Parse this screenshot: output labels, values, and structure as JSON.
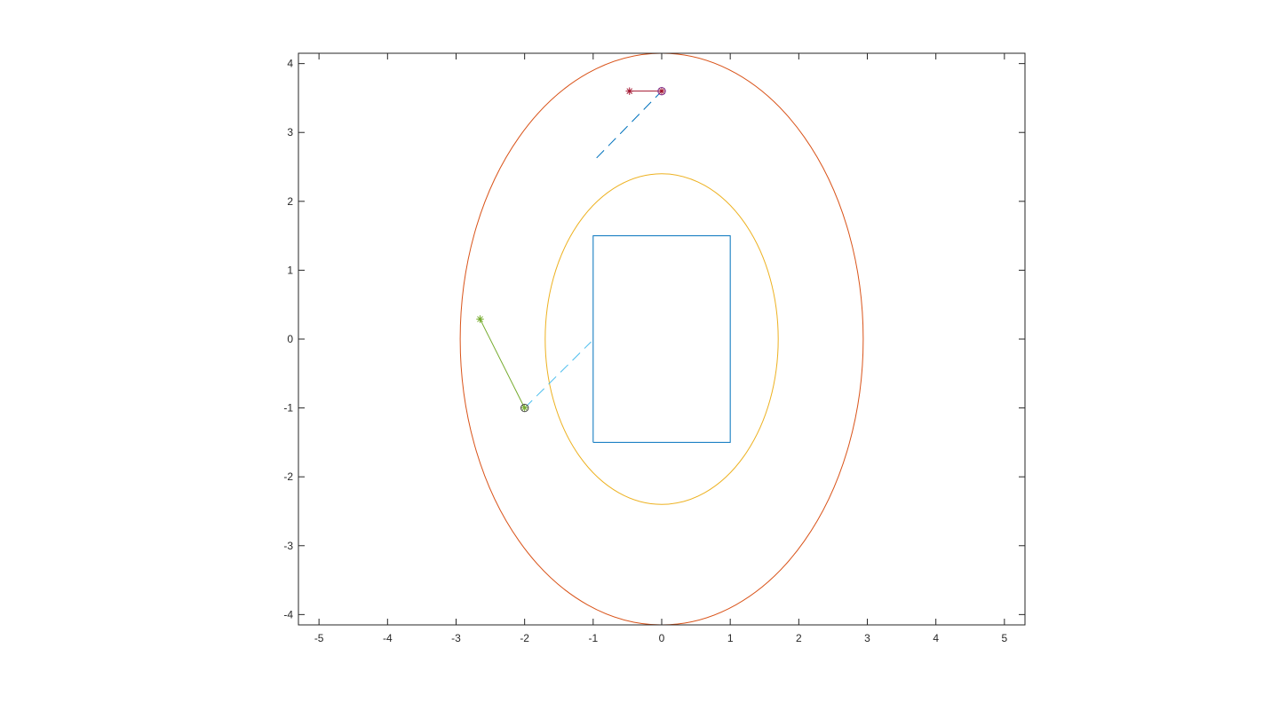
{
  "chart_data": {
    "type": "line",
    "title": "",
    "xlabel": "",
    "ylabel": "",
    "xlim": [
      -5.3,
      5.3
    ],
    "ylim": [
      -4.15,
      4.15
    ],
    "grid": false,
    "x_ticks": [
      -5,
      -4,
      -3,
      -2,
      -1,
      0,
      1,
      2,
      3,
      4,
      5
    ],
    "y_ticks": [
      -4,
      -3,
      -2,
      -1,
      0,
      1,
      2,
      3,
      4
    ],
    "x_tick_labels": [
      "-5",
      "-4",
      "-3",
      "-2",
      "-1",
      "0",
      "1",
      "2",
      "3",
      "4",
      "5"
    ],
    "y_tick_labels": [
      "-4",
      "-3",
      "-2",
      "-1",
      "0",
      "1",
      "2",
      "3",
      "4"
    ],
    "series": [
      {
        "shape": "rectangle",
        "color": "#0072BD",
        "x": [
          -1,
          1,
          1,
          -1,
          -1
        ],
        "y": [
          -1.5,
          -1.5,
          1.5,
          1.5,
          -1.5
        ]
      },
      {
        "shape": "ellipse",
        "color": "#D95319",
        "center": [
          0,
          0
        ],
        "radii": [
          2.94,
          4.15
        ]
      },
      {
        "shape": "ellipse",
        "color": "#EDB120",
        "center": [
          0,
          0
        ],
        "radii": [
          1.7,
          2.4
        ]
      },
      {
        "shape": "segment",
        "color": "#A2142F",
        "style": "solid",
        "x": [
          -0.47,
          0
        ],
        "y": [
          3.6,
          3.6
        ]
      },
      {
        "shape": "segment",
        "color": "#0072BD",
        "style": "dashed",
        "x": [
          -0.95,
          0
        ],
        "y": [
          2.63,
          3.6
        ]
      },
      {
        "shape": "segment",
        "color": "#77AC30",
        "style": "solid",
        "x": [
          -2.65,
          -2
        ],
        "y": [
          0.29,
          -1
        ]
      },
      {
        "shape": "segment",
        "color": "#4DBEEE",
        "style": "dashed",
        "x": [
          -2,
          -1.03
        ],
        "y": [
          -1,
          -0.04
        ]
      }
    ],
    "markers": [
      {
        "x": -0.47,
        "y": 3.6,
        "marker": "asterisk",
        "color": "#A2142F"
      },
      {
        "x": 0,
        "y": 3.6,
        "marker": "asterisk",
        "color": "#A2142F"
      },
      {
        "x": 0,
        "y": 3.6,
        "marker": "circle",
        "color": "#7E2F8E"
      },
      {
        "x": -2.65,
        "y": 0.29,
        "marker": "asterisk",
        "color": "#77AC30"
      },
      {
        "x": -2,
        "y": -1,
        "marker": "asterisk",
        "color": "#77AC30"
      },
      {
        "x": -2,
        "y": -1,
        "marker": "circle",
        "color": "#4D4D4D"
      }
    ]
  }
}
